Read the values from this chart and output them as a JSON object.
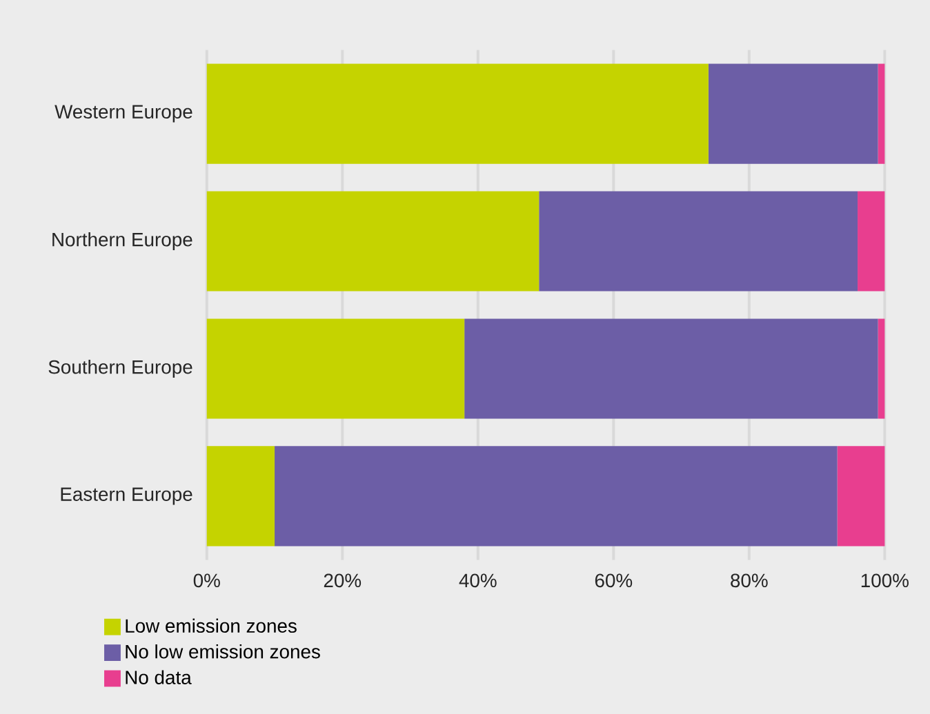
{
  "chart_data": {
    "type": "bar",
    "orientation": "horizontal",
    "stacked": true,
    "categories": [
      "Western Europe",
      "Northern Europe",
      "Southern Europe",
      "Eastern Europe"
    ],
    "series": [
      {
        "name": "Low emission zones",
        "color": "#c5d300",
        "values": [
          74,
          49,
          38,
          10
        ]
      },
      {
        "name": "No low emission zones",
        "color": "#6c5ea6",
        "values": [
          25,
          47,
          61,
          83
        ]
      },
      {
        "name": "No data",
        "color": "#e83e8f",
        "values": [
          1,
          4,
          1,
          7
        ]
      }
    ],
    "xlim": [
      0,
      100
    ],
    "xticks": [
      {
        "value": 0,
        "label": "0%"
      },
      {
        "value": 20,
        "label": "20%"
      },
      {
        "value": 40,
        "label": "40%"
      },
      {
        "value": 60,
        "label": "60%"
      },
      {
        "value": 80,
        "label": "80%"
      },
      {
        "value": 100,
        "label": "100%"
      }
    ],
    "grid": "x",
    "legend": "bottom left"
  }
}
